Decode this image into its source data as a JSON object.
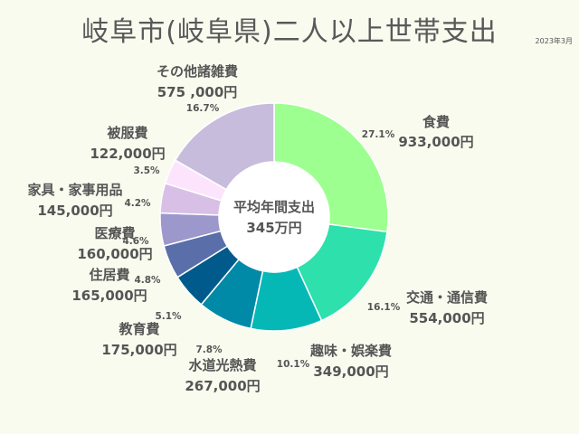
{
  "title": "岐阜市(岐阜県)二人以上世帯支出",
  "date": "2023年3月",
  "chart_data": {
    "type": "donut",
    "center_label": "平均年間支出",
    "center_value": "345万円",
    "slices": [
      {
        "category": "食費",
        "value_label": "933,000円",
        "percent_label": "27.1%",
        "value": 933000,
        "percent": 27.1,
        "color": "#9cff8f"
      },
      {
        "category": "交通・通信費",
        "value_label": "554,000円",
        "percent_label": "16.1%",
        "value": 554000,
        "percent": 16.1,
        "color": "#2de0ac"
      },
      {
        "category": "趣味・娯楽費",
        "value_label": "349,000円",
        "percent_label": "10.1%",
        "value": 349000,
        "percent": 10.1,
        "color": "#05b8b6"
      },
      {
        "category": "水道光熱費",
        "value_label": "267,000円",
        "percent_label": "7.8%",
        "value": 267000,
        "percent": 7.8,
        "color": "#008aa8"
      },
      {
        "category": "教育費",
        "value_label": "175,000円",
        "percent_label": "5.1%",
        "value": 175000,
        "percent": 5.1,
        "color": "#005b8c"
      },
      {
        "category": "住居費",
        "value_label": "165,000円",
        "percent_label": "4.8%",
        "value": 165000,
        "percent": 4.8,
        "color": "#5a6eaa"
      },
      {
        "category": "医療費",
        "value_label": "160,000円",
        "percent_label": "4.6%",
        "value": 160000,
        "percent": 4.6,
        "color": "#9c98cb"
      },
      {
        "category": "家具・家事用品",
        "value_label": "145,000円",
        "percent_label": "4.2%",
        "value": 145000,
        "percent": 4.2,
        "color": "#d8bfe6"
      },
      {
        "category": "被服費",
        "value_label": "122,000円",
        "percent_label": "3.5%",
        "value": 122000,
        "percent": 3.5,
        "color": "#fde4fd"
      },
      {
        "category": "その他諸雑費",
        "value_label": "575 ,000円",
        "percent_label": "16.7%",
        "value": 575000,
        "percent": 16.7,
        "color": "#c8bcdc"
      }
    ]
  }
}
